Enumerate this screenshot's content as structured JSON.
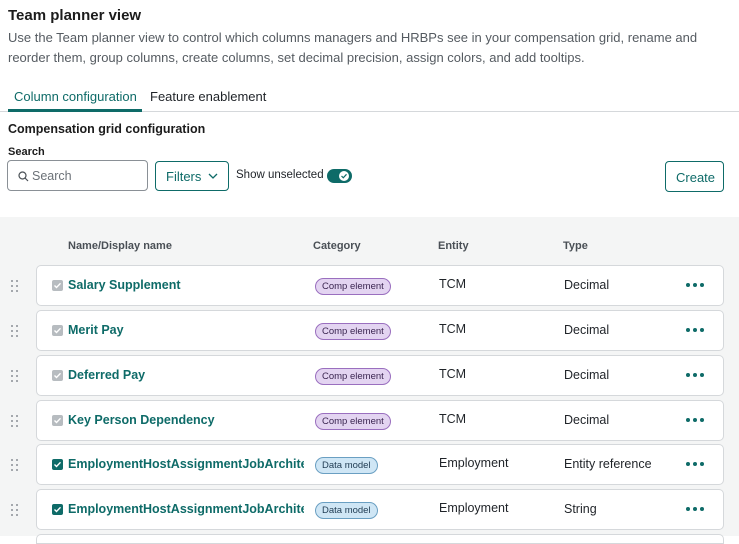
{
  "header": {
    "title": "Team planner view",
    "description": "Use the Team planner view to control which columns managers and HRBPs see in your compensation grid, rename and reorder them, group columns, create columns, set decimal precision, assign colors, and add tooltips."
  },
  "tabs": [
    {
      "label": "Column configuration",
      "active": true
    },
    {
      "label": "Feature enablement",
      "active": false
    }
  ],
  "section": {
    "title": "Compensation grid configuration"
  },
  "search": {
    "label": "Search",
    "placeholder": "Search",
    "value": ""
  },
  "filters": {
    "label": "Filters"
  },
  "show_unselected": {
    "label": "Show unselected",
    "on": true
  },
  "create": {
    "label": "Create"
  },
  "columns": {
    "name": "Name/Display name",
    "category": "Category",
    "entity": "Entity",
    "type": "Type"
  },
  "rows": [
    {
      "name": "Salary Supplement",
      "category": "Comp element",
      "category_color": "purple",
      "entity": "TCM",
      "type": "Decimal",
      "checkbox": "grey"
    },
    {
      "name": "Merit Pay",
      "category": "Comp element",
      "category_color": "purple",
      "entity": "TCM",
      "type": "Decimal",
      "checkbox": "grey"
    },
    {
      "name": "Deferred Pay",
      "category": "Comp element",
      "category_color": "purple",
      "entity": "TCM",
      "type": "Decimal",
      "checkbox": "grey"
    },
    {
      "name": "Key Person Dependency",
      "category": "Comp element",
      "category_color": "purple",
      "entity": "TCM",
      "type": "Decimal",
      "checkbox": "grey"
    },
    {
      "name": "EmploymentHostAssignmentJobArchitecture",
      "category": "Data model",
      "category_color": "blue",
      "entity": "Employment",
      "type": "Entity reference",
      "checkbox": "green"
    },
    {
      "name": "EmploymentHostAssignmentJobArchitecture",
      "category": "Data model",
      "category_color": "blue",
      "entity": "Employment",
      "type": "String",
      "checkbox": "green"
    }
  ],
  "colors": {
    "accent": "#0e6b68",
    "grid_background": "#f4f5f5"
  }
}
